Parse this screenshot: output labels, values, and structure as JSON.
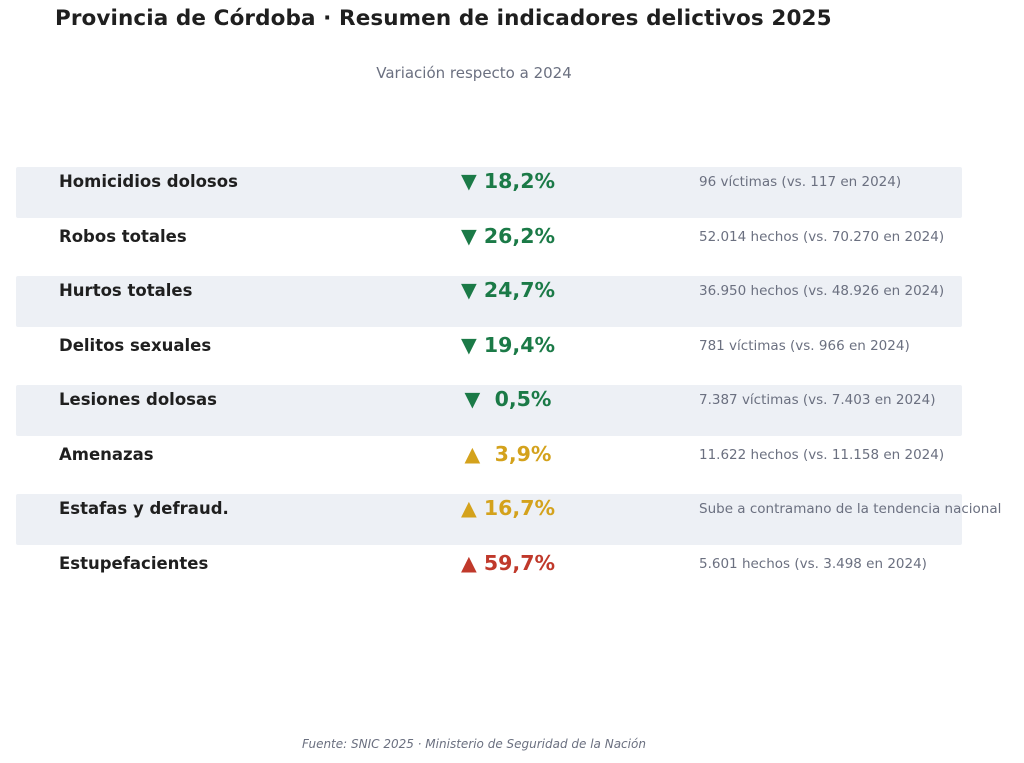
{
  "title": "Provincia de Córdoba · Resumen de indicadores delictivos 2025",
  "subtitle": "Variación respecto a 2024",
  "colors": {
    "down": "#1b7a47",
    "up_moderate": "#d4a21c",
    "up_severe": "#c0392b",
    "band": "#edf0f5"
  },
  "rows": [
    {
      "label": "Homicidios dolosos",
      "change": "▼ 18,2%",
      "detail": "96 víctimas (vs. 117 en 2024)",
      "trend": "down"
    },
    {
      "label": "Robos totales",
      "change": "▼ 26,2%",
      "detail": "52.014 hechos (vs. 70.270 en 2024)",
      "trend": "down"
    },
    {
      "label": "Hurtos totales",
      "change": "▼ 24,7%",
      "detail": "36.950 hechos (vs. 48.926 en 2024)",
      "trend": "down"
    },
    {
      "label": "Delitos sexuales",
      "change": "▼ 19,4%",
      "detail": "781 víctimas (vs. 966 en 2024)",
      "trend": "down"
    },
    {
      "label": "Lesiones dolosas",
      "change": "▼  0,5%",
      "detail": "7.387 víctimas (vs. 7.403 en 2024)",
      "trend": "down"
    },
    {
      "label": "Amenazas",
      "change": "▲  3,9%",
      "detail": "11.622 hechos (vs. 11.158 en 2024)",
      "trend": "up_moderate"
    },
    {
      "label": "Estafas y defraud.",
      "change": "▲ 16,7%",
      "detail": "Sube a contramano de la tendencia nacional",
      "trend": "up_moderate"
    },
    {
      "label": "Estupefacientes",
      "change": "▲ 59,7%",
      "detail": "5.601 hechos (vs. 3.498 en 2024)",
      "trend": "up_severe"
    }
  ],
  "footer": "Fuente: SNIC 2025 · Ministerio de Seguridad de la Nación"
}
